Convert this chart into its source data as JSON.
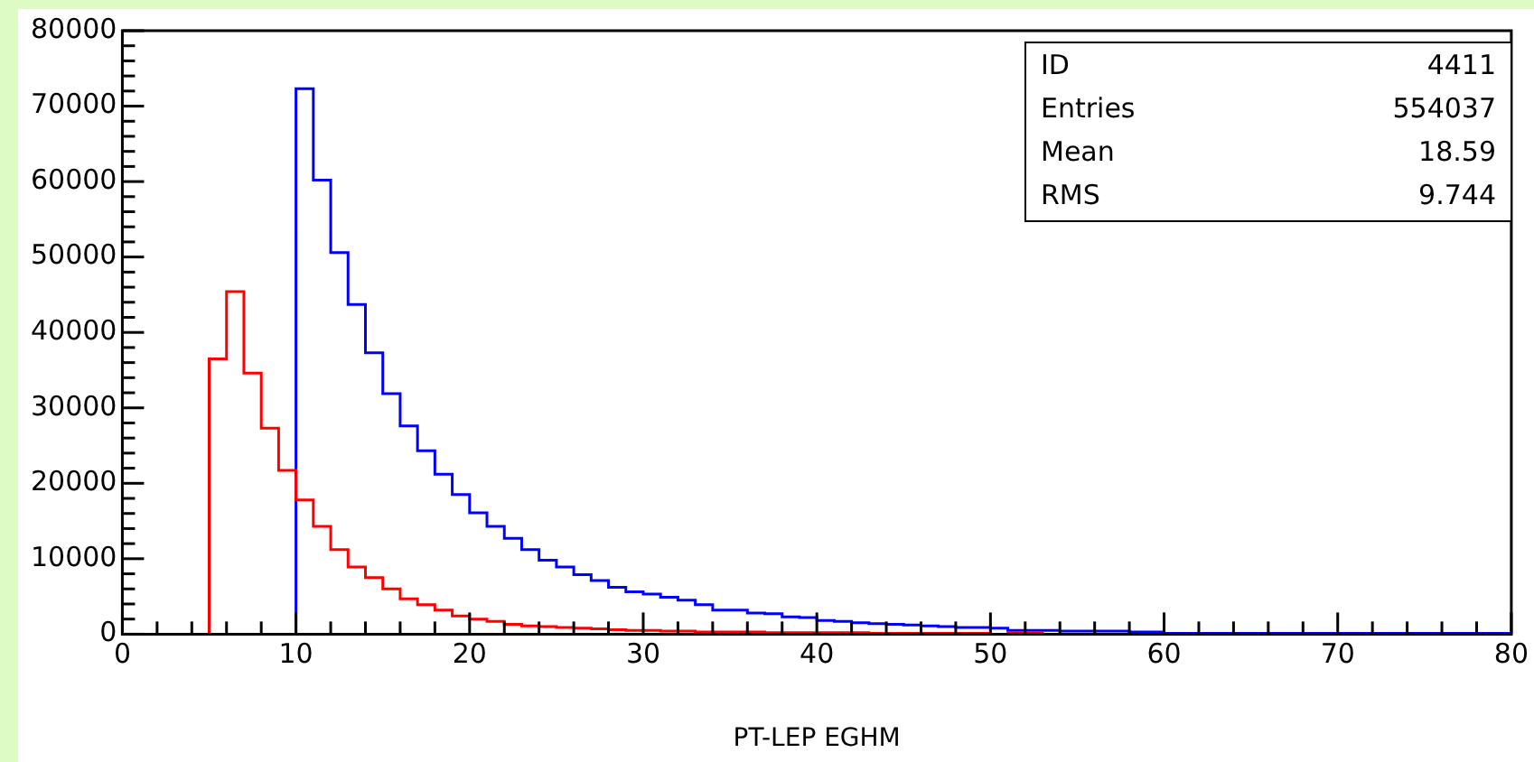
{
  "chart_data": {
    "type": "histogram",
    "xlabel": "PT-LEP EGHM",
    "bins": [
      0,
      1,
      2,
      3,
      4,
      5,
      6,
      7,
      8,
      9,
      10,
      11,
      12,
      13,
      14,
      15,
      16,
      17,
      18,
      19,
      20,
      21,
      22,
      23,
      24,
      25,
      26,
      27,
      28,
      29,
      30,
      31,
      32,
      33,
      34,
      35,
      36,
      37,
      38,
      39,
      40,
      41,
      42,
      43,
      44,
      45,
      46,
      47,
      48,
      49,
      50,
      51,
      52,
      53,
      54,
      55,
      56,
      57,
      58,
      59,
      60,
      61,
      62,
      63,
      64,
      65,
      66,
      67,
      68,
      69,
      70,
      71,
      72,
      73,
      74,
      75,
      76,
      77,
      78,
      79,
      80
    ],
    "series": [
      {
        "color": "#ff0000",
        "values": [
          0,
          0,
          0,
          0,
          0,
          36500,
          45400,
          34600,
          27300,
          21700,
          17800,
          14300,
          11200,
          8900,
          7500,
          6000,
          4700,
          3900,
          3200,
          2400,
          2000,
          1700,
          1300,
          1100,
          1000,
          900,
          800,
          700,
          600,
          500,
          500,
          400,
          400,
          300,
          300,
          300,
          300,
          200,
          200,
          200,
          200,
          200,
          200,
          100,
          100,
          100,
          100,
          100,
          100,
          100,
          0,
          100,
          100,
          0,
          0,
          0,
          0,
          0,
          0,
          0,
          0,
          0,
          0,
          0,
          0,
          0,
          0,
          0,
          0,
          0,
          0,
          0,
          0,
          0,
          0,
          0,
          0,
          0,
          0,
          0
        ]
      },
      {
        "color": "#0000ff",
        "values": [
          0,
          0,
          0,
          0,
          0,
          0,
          0,
          0,
          0,
          0,
          72300,
          60200,
          50600,
          43700,
          37300,
          31900,
          27600,
          24300,
          21200,
          18500,
          16100,
          14300,
          12700,
          11200,
          9800,
          8900,
          7900,
          7100,
          6200,
          5600,
          5300,
          4900,
          4500,
          3900,
          3200,
          3200,
          2800,
          2700,
          2300,
          2200,
          1800,
          1700,
          1500,
          1400,
          1300,
          1200,
          1100,
          1000,
          900,
          900,
          800,
          500,
          500,
          500,
          400,
          400,
          400,
          400,
          300,
          300,
          100,
          100,
          100,
          100,
          100,
          100,
          100,
          100,
          100,
          100,
          100,
          100,
          100,
          100,
          100,
          100,
          100,
          100,
          100,
          100
        ]
      }
    ],
    "xlim": [
      0,
      80
    ],
    "xticks": [
      0,
      {
        "value": 2,
        "label": null
      },
      {
        "value": 4,
        "label": null
      },
      {
        "value": 6,
        "label": null
      },
      {
        "value": 8,
        "label": null
      },
      10,
      {
        "value": 12,
        "label": null
      },
      {
        "value": 14,
        "label": null
      },
      {
        "value": 16,
        "label": null
      },
      {
        "value": 18,
        "label": null
      },
      20,
      {
        "value": 22,
        "label": null
      },
      {
        "value": 24,
        "label": null
      },
      {
        "value": 26,
        "label": null
      },
      {
        "value": 28,
        "label": null
      },
      30,
      {
        "value": 32,
        "label": null
      },
      {
        "value": 34,
        "label": null
      },
      {
        "value": 36,
        "label": null
      },
      {
        "value": 38,
        "label": null
      },
      40,
      {
        "value": 42,
        "label": null
      },
      {
        "value": 44,
        "label": null
      },
      {
        "value": 46,
        "label": null
      },
      {
        "value": 48,
        "label": null
      },
      50,
      {
        "value": 52,
        "label": null
      },
      {
        "value": 54,
        "label": null
      },
      {
        "value": 56,
        "label": null
      },
      {
        "value": 58,
        "label": null
      },
      60,
      {
        "value": 62,
        "label": null
      },
      {
        "value": 64,
        "label": null
      },
      {
        "value": 66,
        "label": null
      },
      {
        "value": 68,
        "label": null
      },
      70,
      {
        "value": 72,
        "label": null
      },
      {
        "value": 74,
        "label": null
      },
      {
        "value": 76,
        "label": null
      },
      {
        "value": 78,
        "label": null
      },
      80
    ],
    "ylim": [
      0,
      80000
    ],
    "yticks": [
      0,
      {
        "value": 2000,
        "label": null
      },
      {
        "value": 4000,
        "label": null
      },
      {
        "value": 6000,
        "label": null
      },
      {
        "value": 8000,
        "label": null
      },
      10000,
      {
        "value": 12000,
        "label": null
      },
      {
        "value": 14000,
        "label": null
      },
      {
        "value": 16000,
        "label": null
      },
      {
        "value": 18000,
        "label": null
      },
      20000,
      {
        "value": 22000,
        "label": null
      },
      {
        "value": 24000,
        "label": null
      },
      {
        "value": 26000,
        "label": null
      },
      {
        "value": 28000,
        "label": null
      },
      30000,
      {
        "value": 32000,
        "label": null
      },
      {
        "value": 34000,
        "label": null
      },
      {
        "value": 36000,
        "label": null
      },
      {
        "value": 38000,
        "label": null
      },
      40000,
      {
        "value": 42000,
        "label": null
      },
      {
        "value": 44000,
        "label": null
      },
      {
        "value": 46000,
        "label": null
      },
      {
        "value": 48000,
        "label": null
      },
      50000,
      {
        "value": 52000,
        "label": null
      },
      {
        "value": 54000,
        "label": null
      },
      {
        "value": 56000,
        "label": null
      },
      {
        "value": 58000,
        "label": null
      },
      60000,
      {
        "value": 62000,
        "label": null
      },
      {
        "value": 64000,
        "label": null
      },
      {
        "value": 66000,
        "label": null
      },
      {
        "value": 68000,
        "label": null
      },
      70000,
      {
        "value": 72000,
        "label": null
      },
      {
        "value": 74000,
        "label": null
      },
      {
        "value": 76000,
        "label": null
      },
      {
        "value": 78000,
        "label": null
      },
      80000
    ],
    "grid": false,
    "legend": false,
    "annotations": [
      "ID 4411",
      "Entries 554037",
      "Mean 18.59",
      "RMS 9.744"
    ]
  }
}
